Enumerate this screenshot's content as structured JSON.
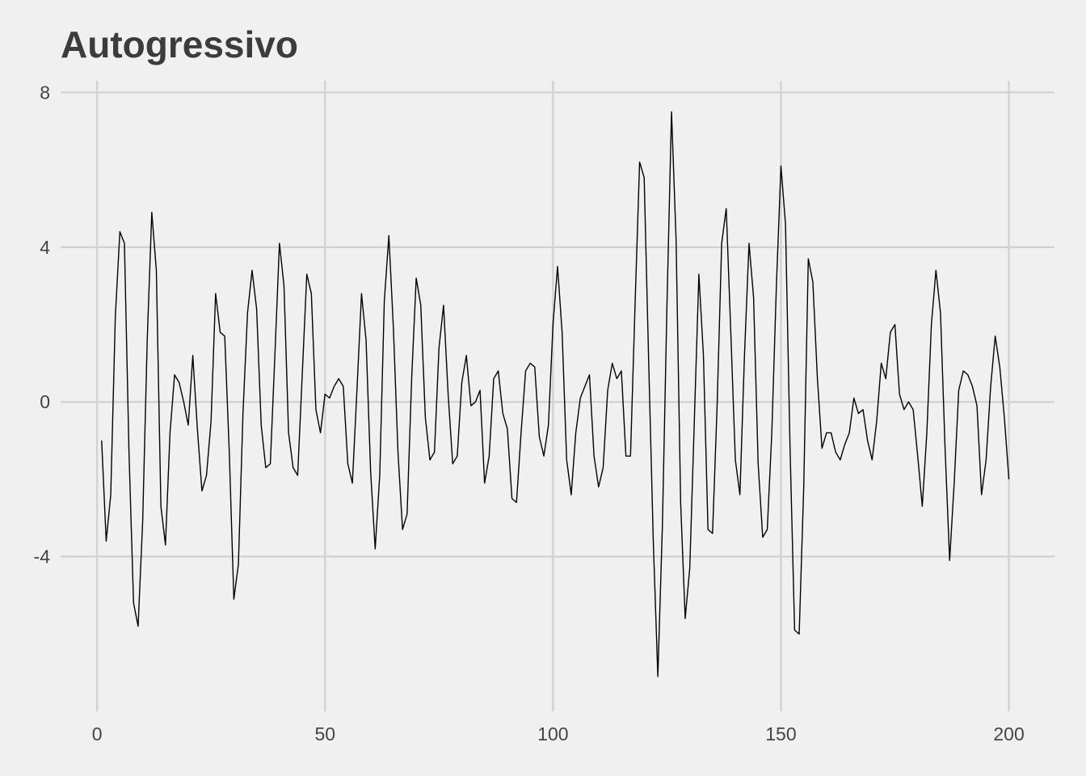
{
  "chart_data": {
    "type": "line",
    "title": "Autogressivo",
    "xlabel": "",
    "ylabel": "",
    "xlim": [
      -8,
      210
    ],
    "ylim": [
      -8,
      8.3
    ],
    "x_ticks": [
      0,
      50,
      100,
      150,
      200
    ],
    "x_tick_labels": [
      "0",
      "50",
      "100",
      "150",
      "200"
    ],
    "y_ticks": [
      -4,
      0,
      4,
      8
    ],
    "y_tick_labels": [
      "-4",
      "0",
      "4",
      "8"
    ],
    "grid": true,
    "legend": "none",
    "colors": {
      "background": "#f0f0f0",
      "grid": "#d2d2d2",
      "line": "#000000",
      "title": "#3c3c3c",
      "tick_text": "#444444"
    },
    "series": [
      {
        "x_start": 1,
        "x_step": 1,
        "values": [
          -1.0,
          -3.6,
          -2.4,
          2.2,
          4.4,
          4.1,
          -1.3,
          -5.2,
          -5.8,
          -3.1,
          1.6,
          4.9,
          3.4,
          -2.7,
          -3.7,
          -0.8,
          0.7,
          0.5,
          0.0,
          -0.6,
          1.2,
          -0.7,
          -2.3,
          -1.9,
          -0.5,
          2.8,
          1.8,
          1.7,
          -1.3,
          -5.1,
          -4.2,
          -0.3,
          2.3,
          3.4,
          2.4,
          -0.6,
          -1.7,
          -1.6,
          1.2,
          4.1,
          3.0,
          -0.8,
          -1.7,
          -1.9,
          0.7,
          3.3,
          2.8,
          -0.2,
          -0.8,
          0.2,
          0.1,
          0.4,
          0.6,
          0.4,
          -1.6,
          -2.1,
          0.3,
          2.8,
          1.6,
          -1.8,
          -3.8,
          -1.9,
          2.6,
          4.3,
          1.9,
          -1.3,
          -3.3,
          -2.9,
          0.6,
          3.2,
          2.5,
          -0.4,
          -1.5,
          -1.3,
          1.4,
          2.5,
          0.2,
          -1.6,
          -1.4,
          0.5,
          1.2,
          -0.1,
          0.0,
          0.3,
          -2.1,
          -1.4,
          0.6,
          0.8,
          -0.3,
          -0.7,
          -2.5,
          -2.6,
          -0.8,
          0.8,
          1.0,
          0.9,
          -0.9,
          -1.4,
          -0.6,
          2.0,
          3.5,
          1.8,
          -1.5,
          -2.4,
          -0.8,
          0.1,
          0.4,
          0.7,
          -1.4,
          -2.2,
          -1.7,
          0.3,
          1.0,
          0.6,
          0.8,
          -1.4,
          -1.4,
          2.5,
          6.2,
          5.8,
          1.0,
          -3.6,
          -7.1,
          -3.2,
          2.5,
          7.5,
          4.2,
          -2.6,
          -5.6,
          -4.3,
          -0.5,
          3.3,
          1.2,
          -3.3,
          -3.4,
          -0.1,
          4.1,
          5.0,
          1.8,
          -1.5,
          -2.4,
          1.2,
          4.1,
          2.7,
          -1.6,
          -3.5,
          -3.3,
          -0.8,
          3.0,
          6.1,
          4.6,
          -1.2,
          -5.9,
          -6.0,
          -2.2,
          3.7,
          3.1,
          0.6,
          -1.2,
          -0.8,
          -0.8,
          -1.3,
          -1.5,
          -1.1,
          -0.8,
          0.1,
          -0.3,
          -0.2,
          -1.0,
          -1.5,
          -0.5,
          1.0,
          0.6,
          1.8,
          2.0,
          0.2,
          -0.2,
          0.0,
          -0.2,
          -1.4,
          -2.7,
          -0.8,
          2.0,
          3.4,
          2.3,
          -1.2,
          -4.1,
          -2.1,
          0.3,
          0.8,
          0.7,
          0.4,
          -0.1,
          -2.4,
          -1.5,
          0.4,
          1.7,
          0.9,
          -0.4,
          -2.0
        ]
      }
    ]
  }
}
